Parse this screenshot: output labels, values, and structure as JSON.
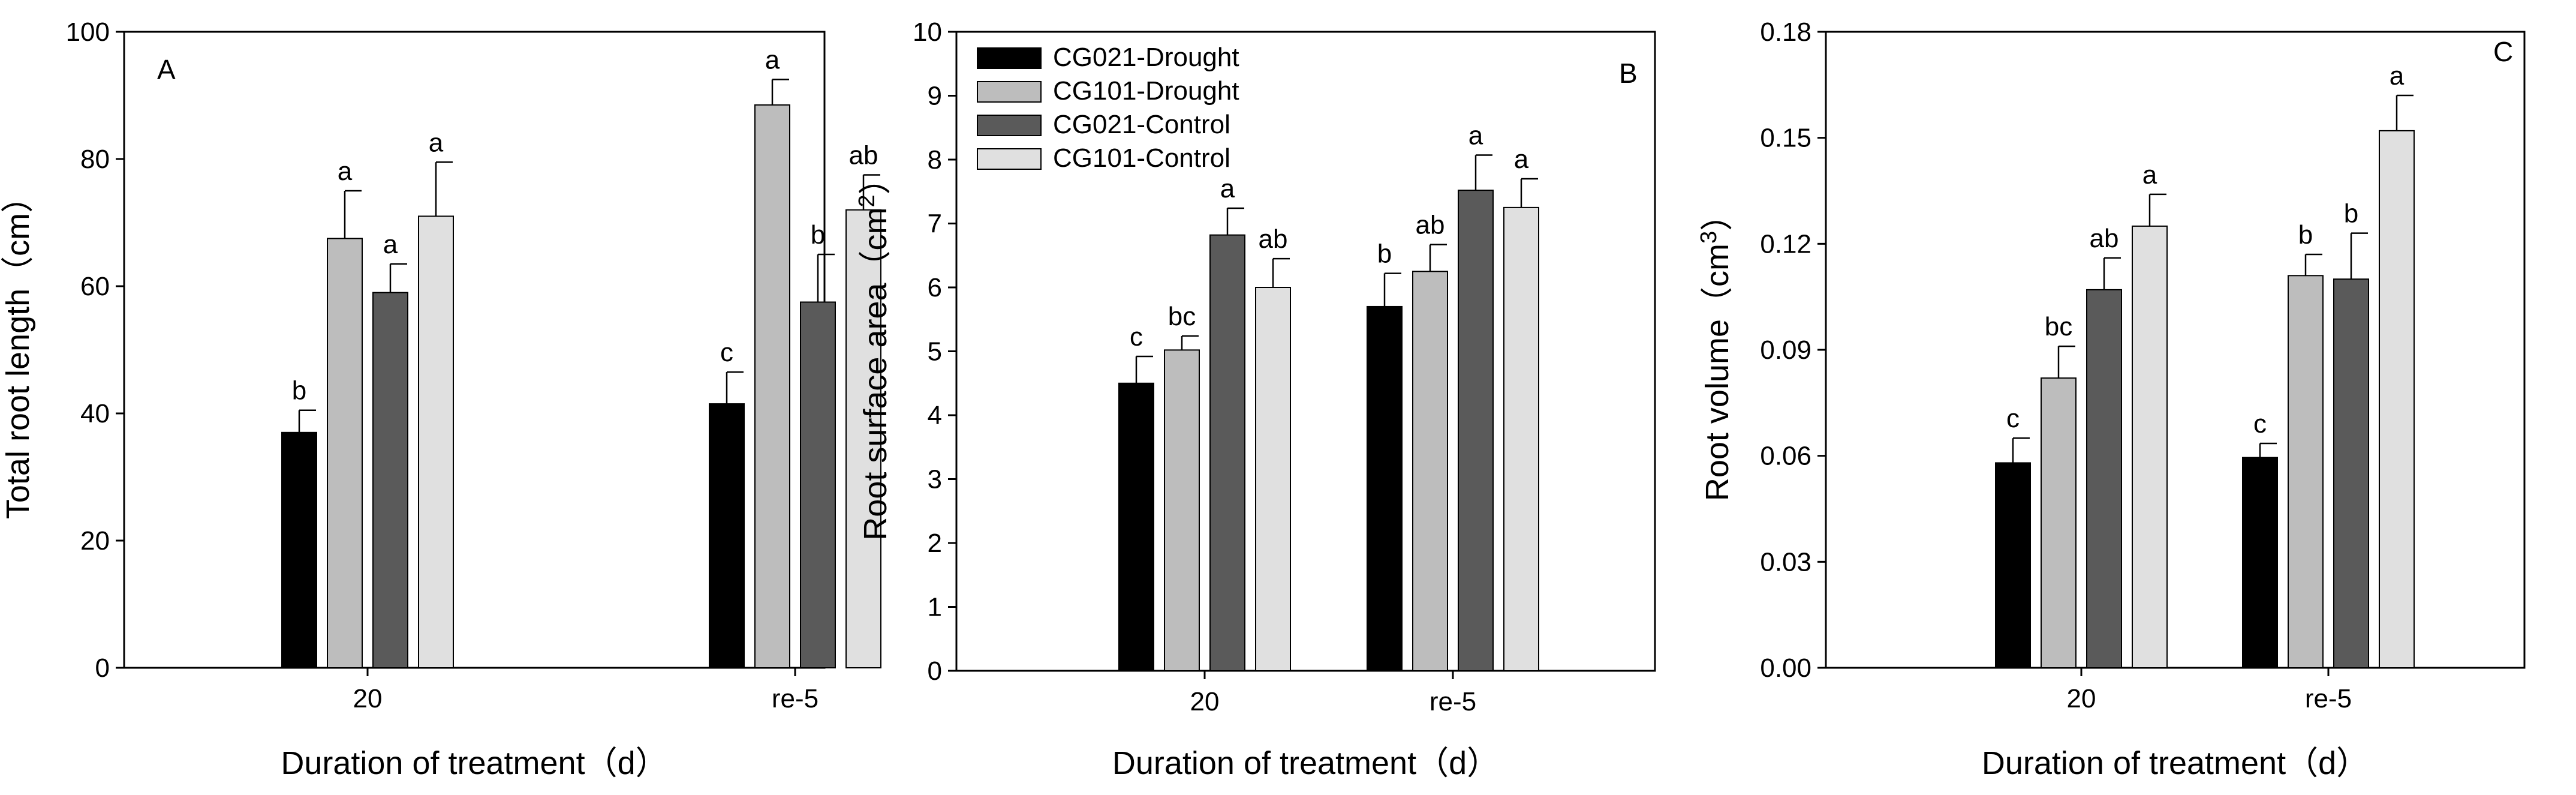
{
  "figure": {
    "colors": {
      "CG021-Drought": "#000000",
      "CG101-Drought": "#bdbdbd",
      "CG021-Control": "#5a5a5a",
      "CG101-Control": "#e0e0e0"
    }
  },
  "chart_data": [
    {
      "type": "bar",
      "panel": "A",
      "xlabel": "Duration of treatment（d）",
      "ylabel": "Total root length（cm）",
      "ylabel_parts": [
        "Total root length（cm）"
      ],
      "categories": [
        "20",
        "re-5"
      ],
      "ylim": [
        0,
        100
      ],
      "yticks": [
        0,
        20,
        40,
        60,
        80,
        100
      ],
      "ytick_labels": [
        "0",
        "20",
        "40",
        "60",
        "80",
        "100"
      ],
      "series": [
        {
          "name": "CG021-Drought",
          "values": [
            37,
            41.5
          ],
          "errors": [
            3.5,
            5
          ],
          "labels": [
            "b",
            "c"
          ]
        },
        {
          "name": "CG101-Drought",
          "values": [
            67.5,
            88.5
          ],
          "errors": [
            7.5,
            4
          ],
          "labels": [
            "a",
            "a"
          ]
        },
        {
          "name": "CG021-Control",
          "values": [
            59,
            57.5
          ],
          "errors": [
            4.5,
            7.5
          ],
          "labels": [
            "a",
            "b"
          ]
        },
        {
          "name": "CG101-Control",
          "values": [
            71,
            72
          ],
          "errors": [
            8.5,
            5.5
          ],
          "labels": [
            "a",
            "ab"
          ]
        }
      ]
    },
    {
      "type": "bar",
      "panel": "B",
      "xlabel": "Duration of treatment（d）",
      "ylabel": "Root surface area（cm2）",
      "ylabel_parts": [
        "Root surface area（cm",
        "2",
        "）"
      ],
      "categories": [
        "20",
        "re-5"
      ],
      "ylim": [
        0,
        10
      ],
      "yticks": [
        0,
        1,
        2,
        3,
        4,
        5,
        6,
        7,
        8,
        9,
        10
      ],
      "ytick_labels": [
        "0",
        "1",
        "2",
        "3",
        "4",
        "5",
        "6",
        "7",
        "8",
        "9",
        "10"
      ],
      "legend": {
        "position": "top-left",
        "entries": [
          "CG021-Drought",
          "CG101-Drought",
          "CG021-Control",
          "CG101-Control"
        ]
      },
      "series": [
        {
          "name": "CG021-Drought",
          "values": [
            4.5,
            5.7
          ],
          "errors": [
            0.42,
            0.52
          ],
          "labels": [
            "c",
            "b"
          ]
        },
        {
          "name": "CG101-Drought",
          "values": [
            5.02,
            6.25
          ],
          "errors": [
            0.22,
            0.42
          ],
          "labels": [
            "bc",
            "ab"
          ]
        },
        {
          "name": "CG021-Control",
          "values": [
            6.82,
            7.52
          ],
          "errors": [
            0.42,
            0.55
          ],
          "labels": [
            "a",
            "a"
          ]
        },
        {
          "name": "CG101-Control",
          "values": [
            6.0,
            7.25
          ],
          "errors": [
            0.45,
            0.45
          ],
          "labels": [
            "ab",
            "a"
          ]
        }
      ]
    },
    {
      "type": "bar",
      "panel": "C",
      "xlabel": "Duration of treatment（d）",
      "ylabel": "Root volume（cm3）",
      "ylabel_parts": [
        "Root volume（cm",
        "3",
        "）"
      ],
      "categories": [
        "20",
        "re-5"
      ],
      "ylim": [
        0,
        0.18
      ],
      "yticks": [
        0,
        0.03,
        0.06,
        0.09,
        0.12,
        0.15,
        0.18
      ],
      "ytick_labels": [
        "0.00",
        "0.03",
        "0.06",
        "0.09",
        "0.12",
        "0.15",
        "0.18"
      ],
      "series": [
        {
          "name": "CG021-Drought",
          "values": [
            0.058,
            0.0595
          ],
          "errors": [
            0.007,
            0.004
          ],
          "labels": [
            "c",
            "c"
          ]
        },
        {
          "name": "CG101-Drought",
          "values": [
            0.082,
            0.111
          ],
          "errors": [
            0.009,
            0.006
          ],
          "labels": [
            "bc",
            "b"
          ]
        },
        {
          "name": "CG021-Control",
          "values": [
            0.107,
            0.11
          ],
          "errors": [
            0.009,
            0.013
          ],
          "labels": [
            "ab",
            "b"
          ]
        },
        {
          "name": "CG101-Control",
          "values": [
            0.125,
            0.152
          ],
          "errors": [
            0.009,
            0.01
          ],
          "labels": [
            "a",
            "a"
          ]
        }
      ]
    }
  ]
}
